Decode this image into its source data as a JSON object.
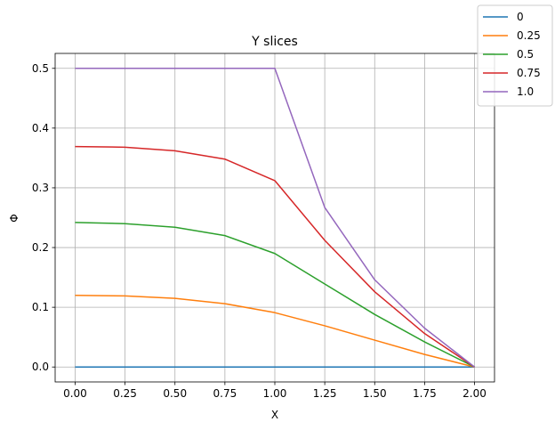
{
  "chart_data": {
    "type": "line",
    "title": "Y slices",
    "xlabel": "X",
    "ylabel": "Φ",
    "x": [
      0.0,
      0.25,
      0.5,
      0.75,
      1.0,
      1.25,
      1.5,
      1.75,
      2.0
    ],
    "xlim": [
      -0.1,
      2.1
    ],
    "ylim": [
      -0.025,
      0.525
    ],
    "x_ticks": [
      "0.00",
      "0.25",
      "0.50",
      "0.75",
      "1.00",
      "1.25",
      "1.50",
      "1.75",
      "2.00"
    ],
    "y_ticks": [
      "0.0",
      "0.1",
      "0.2",
      "0.3",
      "0.4",
      "0.5"
    ],
    "grid": true,
    "legend_position": "top-right",
    "series": [
      {
        "name": "0",
        "color": "#1f77b4",
        "values": [
          0.0,
          0.0,
          0.0,
          0.0,
          0.0,
          0.0,
          0.0,
          0.0,
          0.0
        ]
      },
      {
        "name": "0.25",
        "color": "#ff7f0e",
        "values": [
          0.12,
          0.119,
          0.115,
          0.106,
          0.091,
          0.069,
          0.045,
          0.021,
          0.0
        ]
      },
      {
        "name": "0.5",
        "color": "#2ca02c",
        "values": [
          0.242,
          0.24,
          0.234,
          0.22,
          0.19,
          0.139,
          0.088,
          0.042,
          0.0
        ]
      },
      {
        "name": "0.75",
        "color": "#d62728",
        "values": [
          0.369,
          0.368,
          0.362,
          0.348,
          0.312,
          0.212,
          0.126,
          0.056,
          0.0
        ]
      },
      {
        "name": "1.0",
        "color": "#9467bd",
        "values": [
          0.5,
          0.5,
          0.5,
          0.5,
          0.5,
          0.267,
          0.146,
          0.065,
          0.0
        ]
      }
    ]
  }
}
